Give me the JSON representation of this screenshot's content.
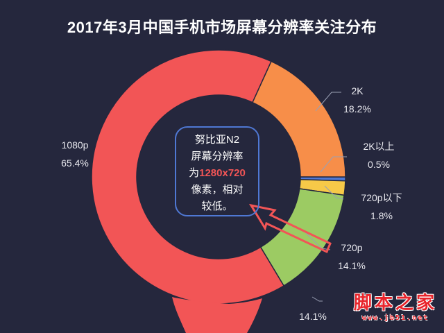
{
  "chart_data": {
    "type": "pie",
    "variant": "donut",
    "title": "2017年3月中国手机市场屏幕分辨率关注分布",
    "categories": [
      "1080p",
      "2K",
      "2K以上",
      "720p以下",
      "720p"
    ],
    "values": [
      65.4,
      18.2,
      0.5,
      1.8,
      14.1
    ],
    "unit": "%",
    "colors": [
      "#f25556",
      "#f78e49",
      "#4f78d4",
      "#f7c948",
      "#9ccb63"
    ],
    "annotations": [
      "努比亚N2屏幕分辨率为1280x720像素，相对较低。",
      "14.1%"
    ],
    "legend": "none (inline labels)"
  },
  "title": "2017年3月中国手机市场屏幕分辨率关注分布",
  "labels": {
    "p1080": {
      "name": "1080p",
      "value": "65.4%"
    },
    "k2": {
      "name": "2K",
      "value": "18.2%"
    },
    "k2plus": {
      "name": "2K以上",
      "value": "0.5%"
    },
    "p720below": {
      "name": "720p以下",
      "value": "1.8%"
    },
    "p720": {
      "name": "720p",
      "value": "14.1%"
    },
    "stray": {
      "value": "14.1%"
    }
  },
  "callout": {
    "line1": "努比亚N2",
    "line2": "屏幕分辨率",
    "line3_prefix": "为",
    "line3_highlight": "1280x720",
    "line4": "像素，相对",
    "line5": "较低。"
  },
  "watermark": {
    "main": "脚本之家",
    "url": "www.jb51.net"
  }
}
